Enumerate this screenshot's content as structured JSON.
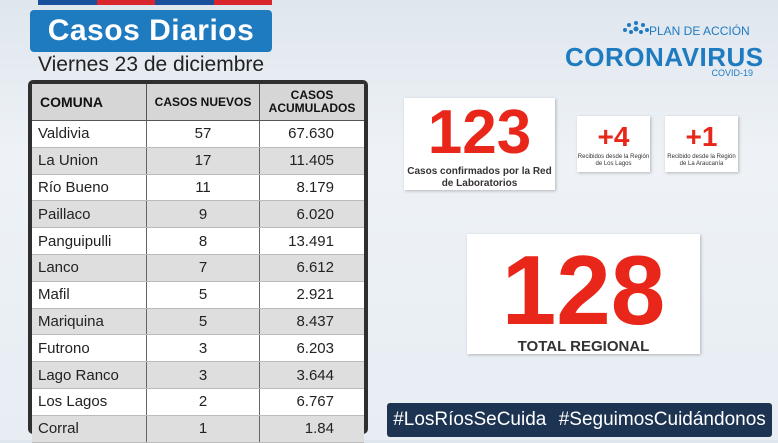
{
  "title": "Casos Diarios",
  "date": "Viernes 23 de diciembre",
  "logo": {
    "top": "PLAN DE ACCIÓN",
    "main": "CORONAVIRUS",
    "sub": "COVID-19"
  },
  "table": {
    "headers": [
      "COMUNA",
      "CASOS NUEVOS",
      "CASOS ACUMULADOS"
    ],
    "rows": [
      {
        "comuna": "Valdivia",
        "nuevos": "57",
        "acumulados": "67.630"
      },
      {
        "comuna": "La Union",
        "nuevos": "17",
        "acumulados": "11.405"
      },
      {
        "comuna": "Río Bueno",
        "nuevos": "11",
        "acumulados": "8.179"
      },
      {
        "comuna": "Paillaco",
        "nuevos": "9",
        "acumulados": "6.020"
      },
      {
        "comuna": "Panguipulli",
        "nuevos": "8",
        "acumulados": "13.491"
      },
      {
        "comuna": "Lanco",
        "nuevos": "7",
        "acumulados": "6.612"
      },
      {
        "comuna": "Mafil",
        "nuevos": "5",
        "acumulados": "2.921"
      },
      {
        "comuna": "Mariquina",
        "nuevos": "5",
        "acumulados": "8.437"
      },
      {
        "comuna": "Futrono",
        "nuevos": "3",
        "acumulados": "6.203"
      },
      {
        "comuna": "Lago Ranco",
        "nuevos": "3",
        "acumulados": "3.644"
      },
      {
        "comuna": "Los Lagos",
        "nuevos": "2",
        "acumulados": "6.767"
      },
      {
        "comuna": "Corral",
        "nuevos": "1",
        "acumulados": "1.84"
      }
    ]
  },
  "cards": {
    "confirmados": {
      "value": "123",
      "caption": "Casos confirmados por la Red de Laboratorios"
    },
    "los_lagos": {
      "value": "+4",
      "caption": "Recibidos desde la Región de Los Lagos"
    },
    "araucania": {
      "value": "+1",
      "caption": "Recibido desde la Región de La Araucanía"
    },
    "total": {
      "value": "128",
      "caption": "TOTAL REGIONAL"
    }
  },
  "hashtags": [
    "#LosRíosSeCuida",
    "#SeguimosCuidándonos"
  ],
  "colors": {
    "accent_blue": "#1f7bc0",
    "number_red": "#e8261a",
    "banner_navy": "#1c3352"
  }
}
